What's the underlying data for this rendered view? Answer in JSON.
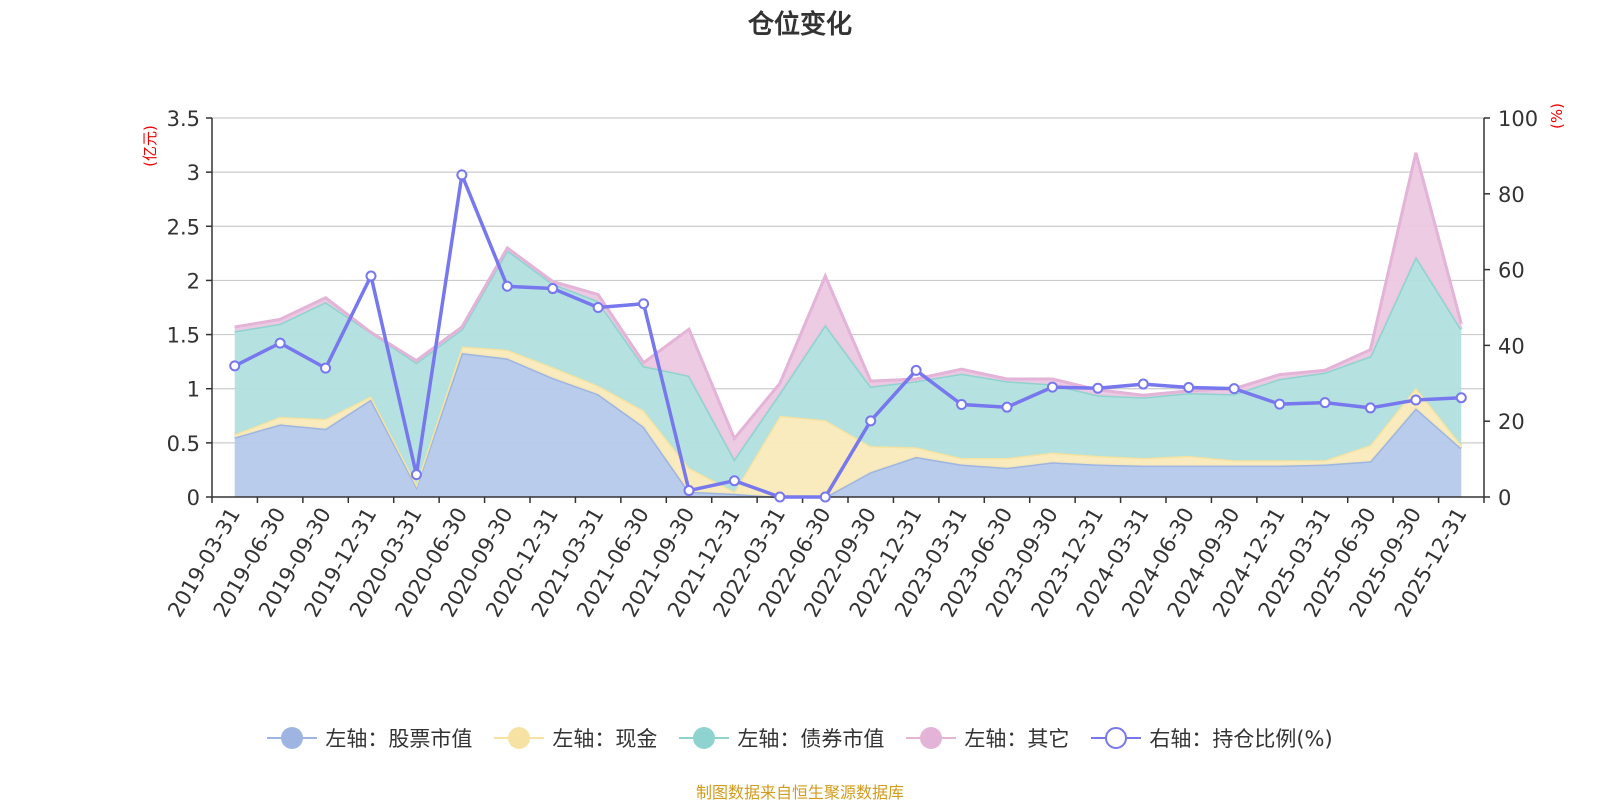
{
  "chart_data": {
    "type": "area",
    "title": "仓位变化",
    "left_axis_unit": "(亿元)",
    "right_axis_unit": "(%)",
    "left_ylim": [
      0,
      3.5
    ],
    "right_ylim": [
      0,
      100
    ],
    "left_ticks": [
      "0",
      "0.5",
      "1",
      "1.5",
      "2",
      "2.5",
      "3",
      "3.5"
    ],
    "right_ticks": [
      "0",
      "20",
      "40",
      "60",
      "80",
      "100"
    ],
    "grid": true,
    "legend_position": "bottom",
    "categories": [
      "2019-03-31",
      "2019-06-30",
      "2019-09-30",
      "2019-12-31",
      "2020-03-31",
      "2020-06-30",
      "2020-09-30",
      "2020-12-31",
      "2021-03-31",
      "2021-06-30",
      "2021-09-30",
      "2021-12-31",
      "2022-03-31",
      "2022-06-30",
      "2022-09-30",
      "2022-12-31",
      "2023-03-31",
      "2023-06-30",
      "2023-09-30",
      "2023-12-31",
      "2024-03-31",
      "2024-06-30",
      "2024-09-30",
      "2024-12-31",
      "2025-03-31",
      "2025-06-30",
      "2025-09-30",
      "2025-12-31"
    ],
    "series": [
      {
        "name": "左轴：股票市值",
        "axis": "left",
        "stack": true,
        "color": "#9db5e0",
        "fill": "#b6c9ea",
        "values": [
          0.55,
          0.67,
          0.63,
          0.9,
          0.1,
          1.33,
          1.28,
          1.1,
          0.95,
          0.65,
          0.05,
          0.03,
          0.0,
          0.0,
          0.23,
          0.37,
          0.3,
          0.27,
          0.32,
          0.3,
          0.29,
          0.29,
          0.29,
          0.29,
          0.3,
          0.33,
          0.82,
          0.45
        ]
      },
      {
        "name": "左轴：现金",
        "axis": "left",
        "stack": true,
        "color": "#f6e3a3",
        "fill": "#f9eab9",
        "values": [
          0.03,
          0.07,
          0.09,
          0.03,
          0.02,
          0.06,
          0.08,
          0.1,
          0.08,
          0.15,
          0.22,
          0.02,
          0.75,
          0.71,
          0.24,
          0.09,
          0.06,
          0.09,
          0.09,
          0.08,
          0.07,
          0.09,
          0.05,
          0.05,
          0.04,
          0.15,
          0.19,
          0.03
        ]
      },
      {
        "name": "左轴：债券市值",
        "axis": "left",
        "stack": true,
        "color": "#8ed3cf",
        "fill": "#b1e0df",
        "values": [
          0.95,
          0.86,
          1.08,
          0.59,
          1.12,
          0.16,
          0.92,
          0.77,
          0.78,
          0.41,
          0.85,
          0.3,
          0.21,
          0.88,
          0.55,
          0.61,
          0.78,
          0.71,
          0.63,
          0.56,
          0.56,
          0.58,
          0.61,
          0.75,
          0.81,
          0.82,
          1.21,
          1.07
        ]
      },
      {
        "name": "左轴：其它",
        "axis": "left",
        "stack": true,
        "color": "#e3b3d8",
        "fill": "#ecc8e1",
        "values": [
          0.04,
          0.04,
          0.04,
          0.0,
          0.02,
          0.02,
          0.02,
          0.02,
          0.06,
          0.03,
          0.43,
          0.19,
          0.09,
          0.45,
          0.05,
          0.02,
          0.04,
          0.02,
          0.05,
          0.05,
          0.02,
          0.02,
          0.05,
          0.04,
          0.02,
          0.06,
          0.96,
          0.05
        ]
      },
      {
        "name": "右轴：持仓比例(%)",
        "axis": "right",
        "stack": false,
        "color": "#7777ee",
        "values": [
          34.6,
          40.6,
          34.0,
          58.3,
          5.9,
          85.0,
          55.6,
          55.0,
          50.0,
          51.0,
          1.7,
          4.3,
          0.0,
          0.0,
          20.1,
          33.4,
          24.4,
          23.7,
          29.0,
          28.7,
          29.8,
          28.9,
          28.6,
          24.5,
          24.9,
          23.5,
          25.6,
          26.2
        ]
      }
    ],
    "source_note": "制图数据来自恒生聚源数据库"
  }
}
